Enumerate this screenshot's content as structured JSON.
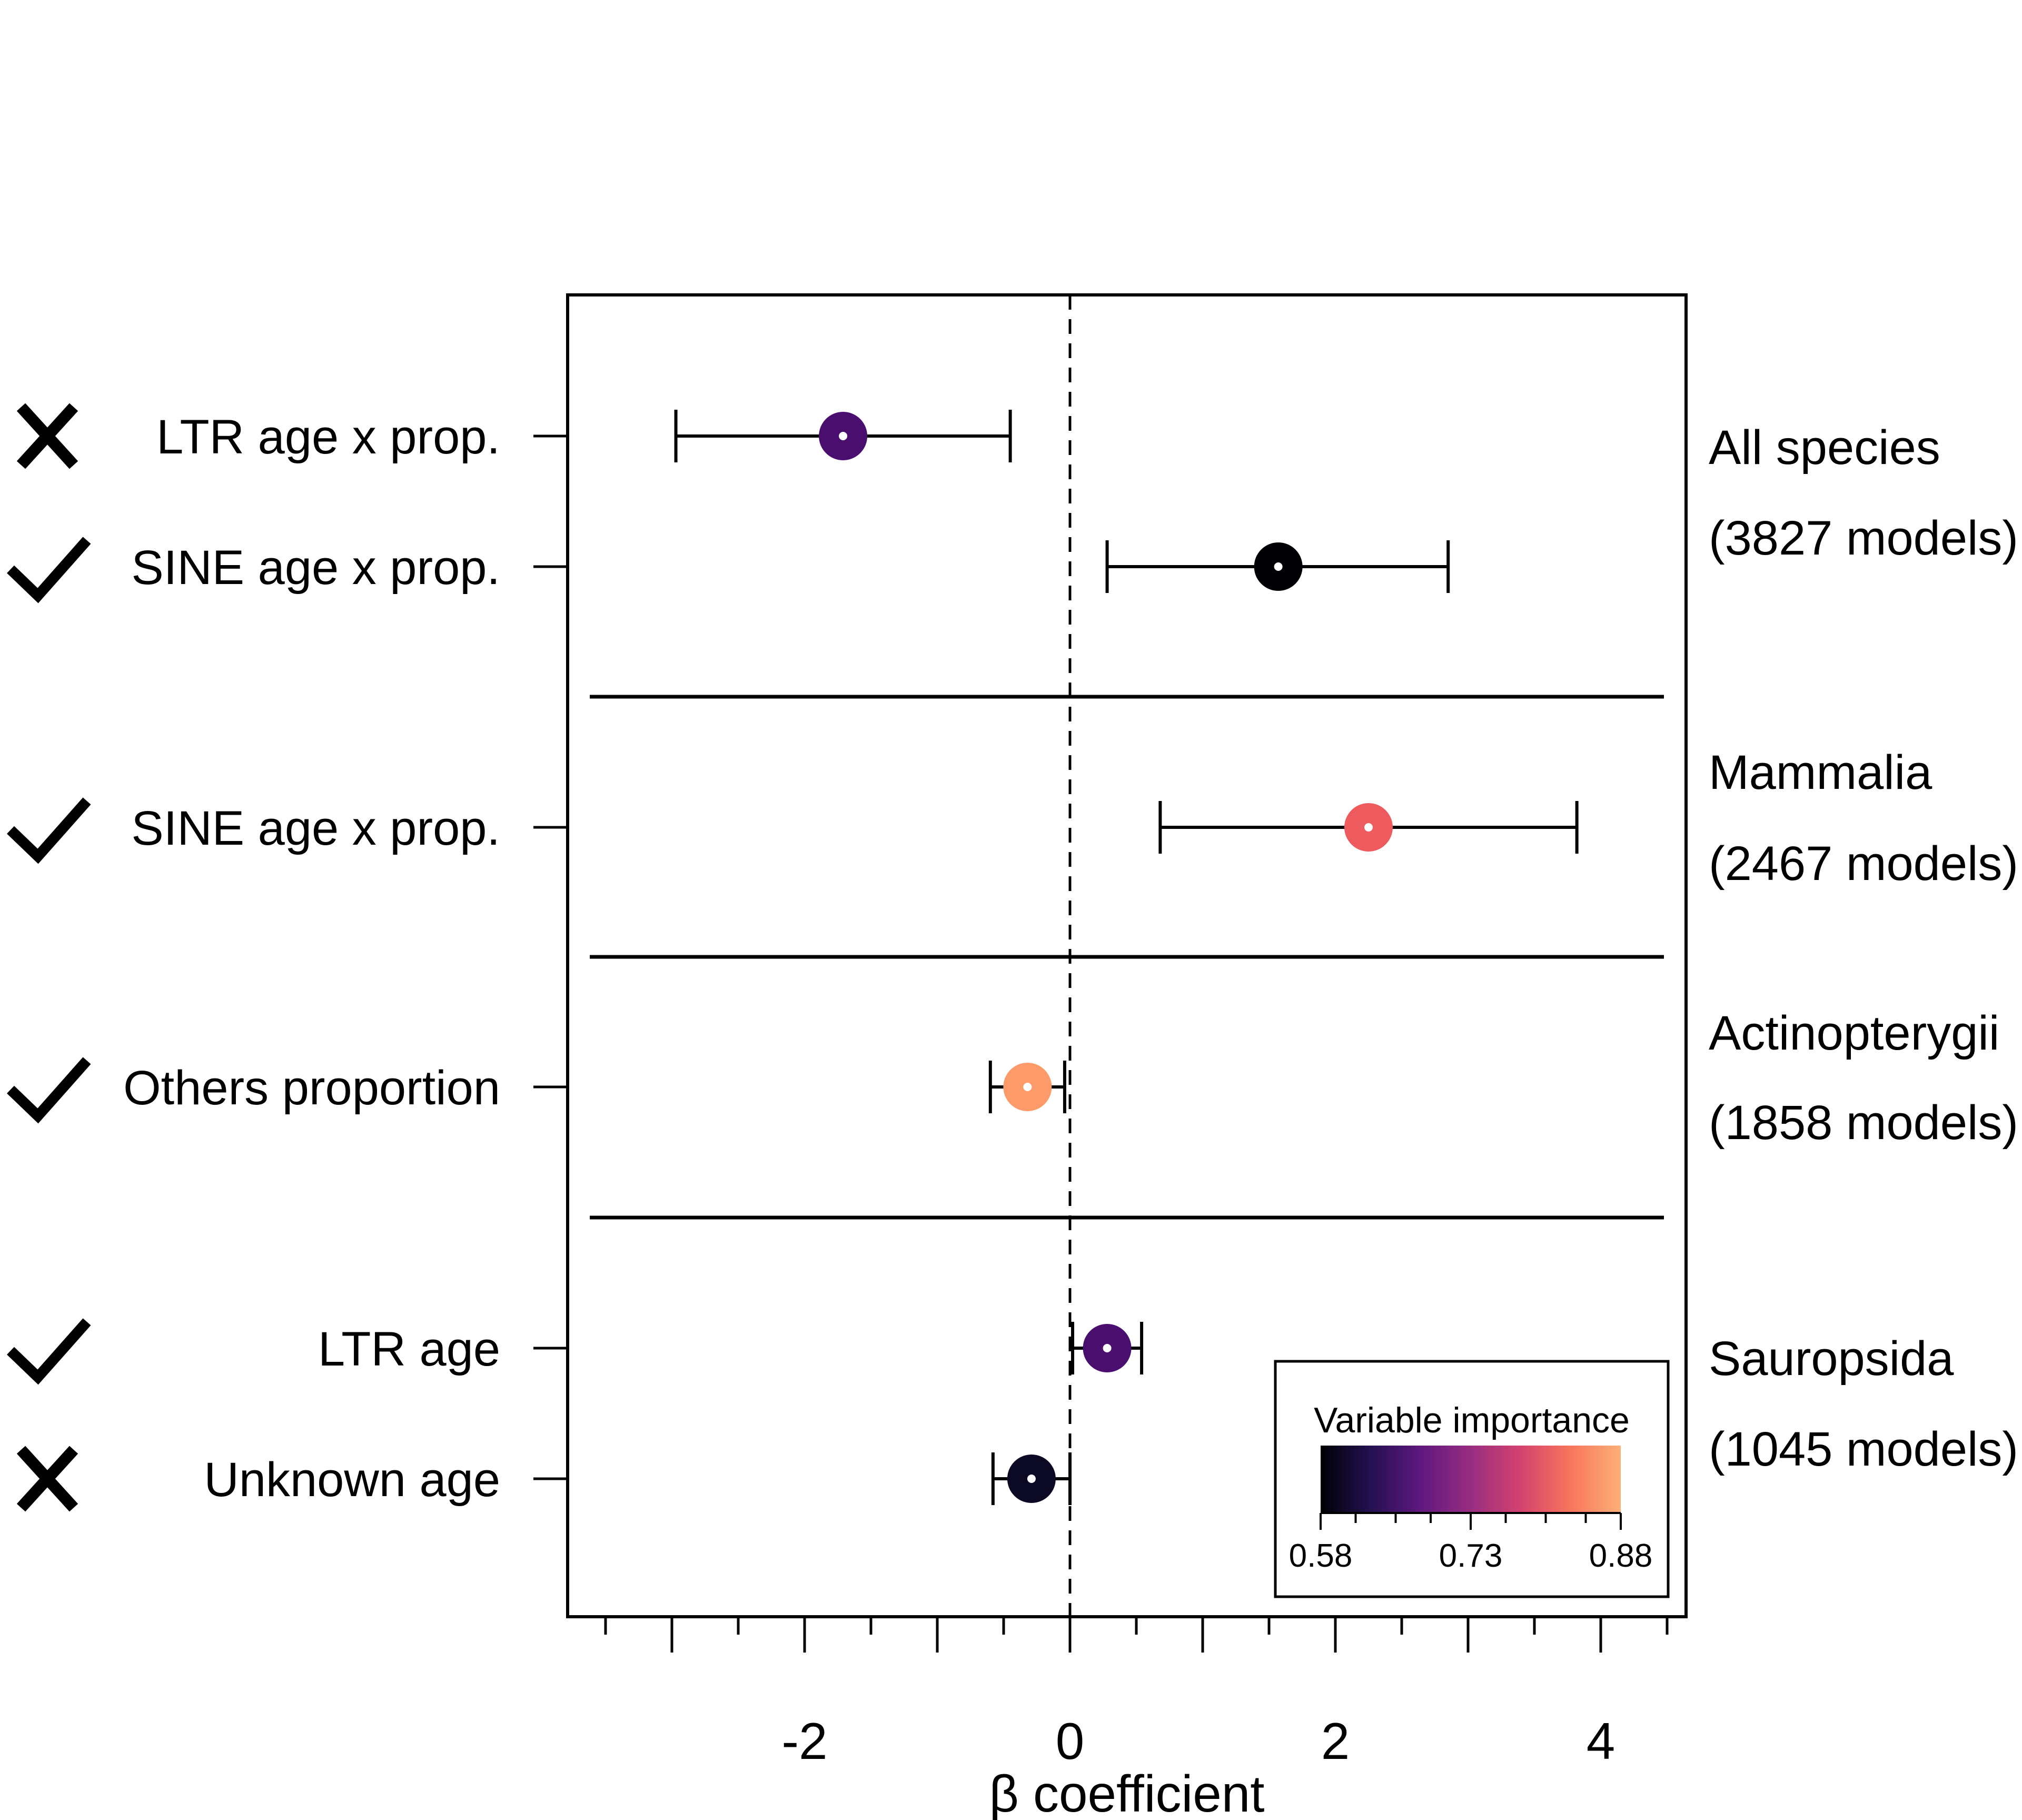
{
  "chart_data": {
    "type": "forest",
    "title": "",
    "xlabel": "β coefficient",
    "ylabel": "",
    "xlim": [
      -3.75,
      4.65
    ],
    "x_ticks_major": [
      -3,
      -2,
      -1,
      0,
      1,
      2,
      3,
      4
    ],
    "x_tick_labels": [
      {
        "value": -2,
        "label": "-2"
      },
      {
        "value": 0,
        "label": "0"
      },
      {
        "value": 2,
        "label": "2"
      },
      {
        "value": 4,
        "label": "4"
      }
    ],
    "x_ticks_minor": [
      -3.5,
      -2.5,
      -1.5,
      -0.5,
      0.5,
      1.5,
      2.5,
      3.5,
      4.5
    ],
    "reference_line": 0,
    "groups": [
      {
        "name": "All species",
        "models": "(3827 models)",
        "rows": [
          {
            "label": "LTR age x prop.",
            "mark": "cross",
            "estimate": -1.71,
            "lower": -2.97,
            "upper": -0.45,
            "importance": 0.68,
            "color": "#4a0f6e"
          },
          {
            "label": "SINE age x prop.",
            "mark": "check",
            "estimate": 1.57,
            "lower": 0.28,
            "upper": 2.85,
            "importance": 0.58,
            "color": "#000004"
          }
        ]
      },
      {
        "name": "Mammalia",
        "models": "(2467 models)",
        "rows": [
          {
            "label": "SINE age x prop.",
            "mark": "check",
            "estimate": 2.25,
            "lower": 0.68,
            "upper": 3.82,
            "importance": 0.84,
            "color": "#ee5b5e"
          }
        ]
      },
      {
        "name": "Actinopterygii",
        "models": "(1858 models)",
        "rows": [
          {
            "label": "Others proportion",
            "mark": "check",
            "estimate": -0.32,
            "lower": -0.6,
            "upper": -0.04,
            "importance": 0.88,
            "color": "#fd9a6a"
          }
        ]
      },
      {
        "name": "Sauropsida",
        "models": "(1045 models)",
        "rows": [
          {
            "label": "LTR age",
            "mark": "check",
            "estimate": 0.28,
            "lower": 0.02,
            "upper": 0.54,
            "importance": 0.67,
            "color": "#4a0f6e"
          },
          {
            "label": "Unknown age",
            "mark": "cross",
            "estimate": -0.29,
            "lower": -0.58,
            "upper": 0.0,
            "importance": 0.58,
            "color": "#0b0924"
          }
        ]
      }
    ],
    "colorbar": {
      "title": "Variable importance",
      "min": 0.58,
      "max": 0.88,
      "ticks": [
        {
          "value": 0.58,
          "label": "0.58"
        },
        {
          "value": 0.73,
          "label": "0.73"
        },
        {
          "value": 0.88,
          "label": "0.88"
        }
      ],
      "stops": [
        "#000004",
        "#231151",
        "#5f187f",
        "#982d80",
        "#d3436e",
        "#f8765c",
        "#feb078"
      ],
      "placement": "bottom-right"
    }
  }
}
